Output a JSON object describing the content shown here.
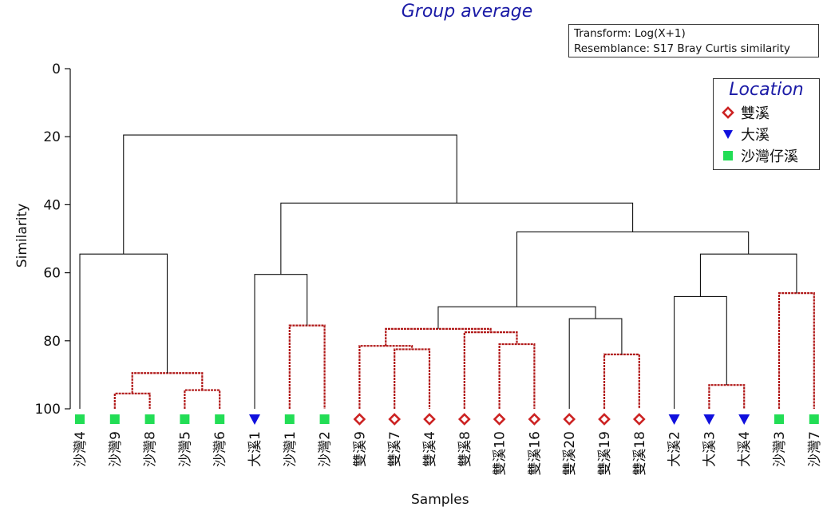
{
  "chart_data": {
    "type": "dendrogram",
    "title": "Group average",
    "transform_lines": [
      "Transform: Log(X+1)",
      "Resemblance: S17 Bray Curtis similarity"
    ],
    "xlabel": "Samples",
    "ylabel": "Similarity",
    "y_ticks": [
      0,
      20,
      40,
      60,
      80,
      100
    ],
    "ylim": [
      0,
      100
    ],
    "legend": {
      "title": "Location",
      "entries": [
        {
          "label": "雙溪",
          "marker": "diamond",
          "color": "#cc2222"
        },
        {
          "label": "大溪",
          "marker": "triangle",
          "color": "#1010dd"
        },
        {
          "label": "沙灣仔溪",
          "marker": "square",
          "color": "#22dd55"
        }
      ]
    },
    "leaves": [
      {
        "label": "沙灣4",
        "group": "沙灣仔溪"
      },
      {
        "label": "沙灣9",
        "group": "沙灣仔溪"
      },
      {
        "label": "沙灣8",
        "group": "沙灣仔溪"
      },
      {
        "label": "沙灣5",
        "group": "沙灣仔溪"
      },
      {
        "label": "沙灣6",
        "group": "沙灣仔溪"
      },
      {
        "label": "大溪1",
        "group": "大溪"
      },
      {
        "label": "沙灣1",
        "group": "沙灣仔溪"
      },
      {
        "label": "沙灣2",
        "group": "沙灣仔溪"
      },
      {
        "label": "雙溪9",
        "group": "雙溪"
      },
      {
        "label": "雙溪7",
        "group": "雙溪"
      },
      {
        "label": "雙溪4",
        "group": "雙溪"
      },
      {
        "label": "雙溪8",
        "group": "雙溪"
      },
      {
        "label": "雙溪10",
        "group": "雙溪"
      },
      {
        "label": "雙溪16",
        "group": "雙溪"
      },
      {
        "label": "雙溪20",
        "group": "雙溪"
      },
      {
        "label": "雙溪19",
        "group": "雙溪"
      },
      {
        "label": "雙溪18",
        "group": "雙溪"
      },
      {
        "label": "大溪2",
        "group": "大溪"
      },
      {
        "label": "大溪3",
        "group": "大溪"
      },
      {
        "label": "大溪4",
        "group": "大溪"
      },
      {
        "label": "沙灣3",
        "group": "沙灣仔溪"
      },
      {
        "label": "沙灣7",
        "group": "沙灣仔溪"
      }
    ],
    "merges": [
      {
        "a": 1,
        "b": 2,
        "similarity": 95.5,
        "dashed": true
      },
      {
        "a": 3,
        "b": 4,
        "similarity": 94.5,
        "dashed": true
      },
      {
        "a": 22,
        "b": 23,
        "similarity": 89.5,
        "dashed": true
      },
      {
        "a": 0,
        "b": 24,
        "similarity": 54.5,
        "dashed": false
      },
      {
        "a": 6,
        "b": 7,
        "similarity": 75.5,
        "dashed": true
      },
      {
        "a": 5,
        "b": 26,
        "similarity": 60.5,
        "dashed": false
      },
      {
        "a": 9,
        "b": 10,
        "similarity": 82.5,
        "dashed": true
      },
      {
        "a": 8,
        "b": 28,
        "similarity": 81.5,
        "dashed": true
      },
      {
        "a": 12,
        "b": 13,
        "similarity": 81.0,
        "dashed": true
      },
      {
        "a": 11,
        "b": 30,
        "similarity": 77.5,
        "dashed": true
      },
      {
        "a": 29,
        "b": 31,
        "similarity": 76.5,
        "dashed": true
      },
      {
        "a": 15,
        "b": 16,
        "similarity": 84.0,
        "dashed": true
      },
      {
        "a": 14,
        "b": 33,
        "similarity": 73.5,
        "dashed": false
      },
      {
        "a": 32,
        "b": 34,
        "similarity": 70.0,
        "dashed": false
      },
      {
        "a": 18,
        "b": 19,
        "similarity": 93.0,
        "dashed": true
      },
      {
        "a": 17,
        "b": 36,
        "similarity": 67.0,
        "dashed": false
      },
      {
        "a": 20,
        "b": 21,
        "similarity": 66.0,
        "dashed": true
      },
      {
        "a": 37,
        "b": 38,
        "similarity": 54.5,
        "dashed": false
      },
      {
        "a": 35,
        "b": 39,
        "similarity": 48.0,
        "dashed": false
      },
      {
        "a": 27,
        "b": 40,
        "similarity": 39.5,
        "dashed": false
      },
      {
        "a": 25,
        "b": 41,
        "similarity": 19.5,
        "dashed": false
      }
    ]
  }
}
